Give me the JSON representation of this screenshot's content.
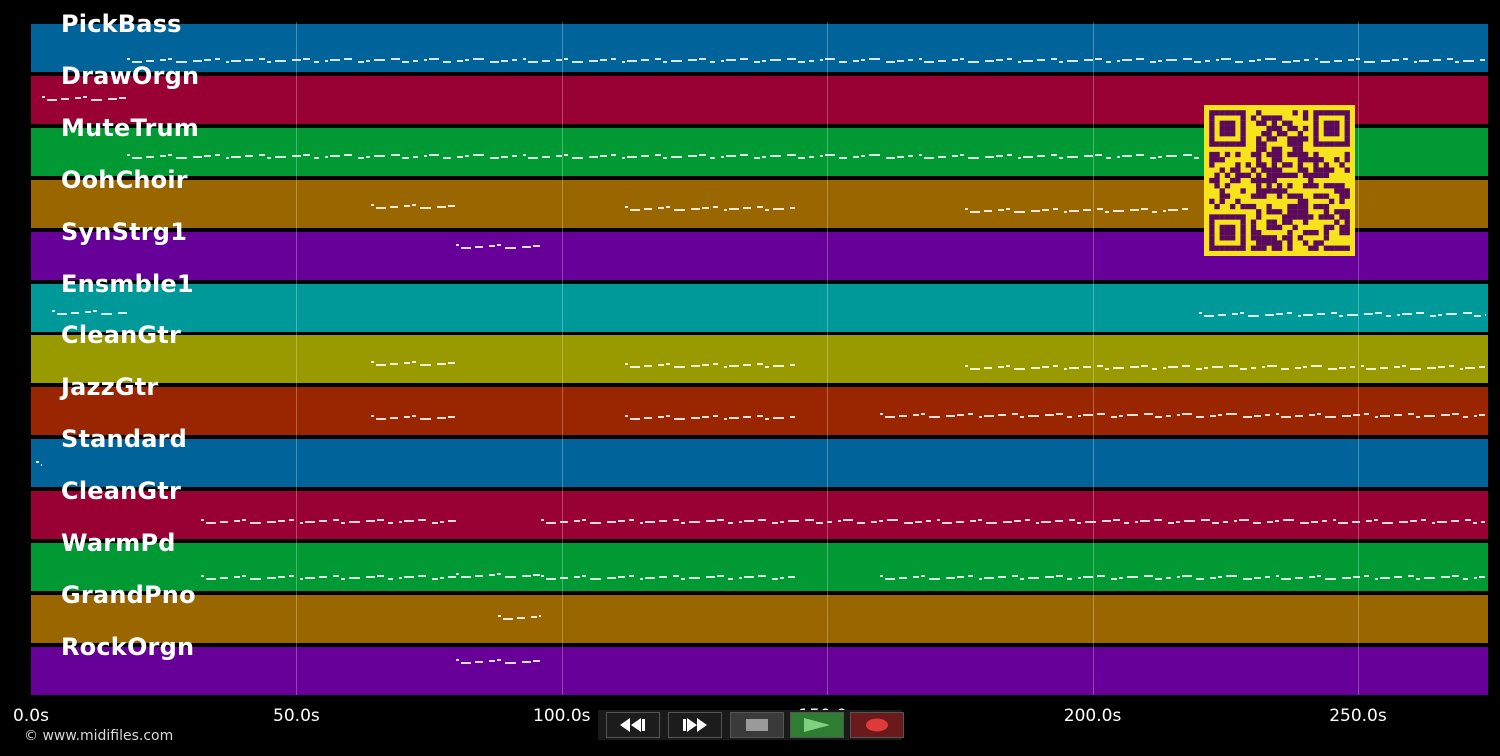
{
  "tracks": [
    {
      "name": "PickBass",
      "color": "#00639a"
    },
    {
      "name": "DrawOrgn",
      "color": "#990033"
    },
    {
      "name": "MuteTrum",
      "color": "#009933"
    },
    {
      "name": "OohChoir",
      "color": "#996600"
    },
    {
      "name": "SynStrg1",
      "color": "#660099"
    },
    {
      "name": "Ensmble1",
      "color": "#009999"
    },
    {
      "name": "CleanGtr",
      "color": "#999900"
    },
    {
      "name": "JazzGtr",
      "color": "#992600"
    },
    {
      "name": "Standard",
      "color": "#00639a"
    },
    {
      "name": "CleanGtr",
      "color": "#990033"
    },
    {
      "name": "WarmPd",
      "color": "#009933"
    },
    {
      "name": "GrandPno",
      "color": "#996600"
    },
    {
      "name": "RockOrgn",
      "color": "#660099"
    }
  ],
  "timeline": {
    "ticks": [
      "0.0s",
      "50.0s",
      "100.0s",
      "150.0s",
      "200.0s",
      "250.0s"
    ],
    "tick_seconds": [
      0,
      50,
      100,
      150,
      200,
      250
    ],
    "max_seconds": 274.5
  },
  "controls": {
    "rewind": "rewind-icon",
    "fast_forward": "fast-forward-icon",
    "stop": "stop-icon",
    "play": "play-icon",
    "record": "record-icon"
  },
  "colors": {
    "play_bg": "#2e7d32",
    "record_bg": "#6a1a1a",
    "qr_fg": "#5a0a5a",
    "qr_bg": "#f6e31c"
  },
  "footer": {
    "copyright": "© www.midifiles.com"
  }
}
